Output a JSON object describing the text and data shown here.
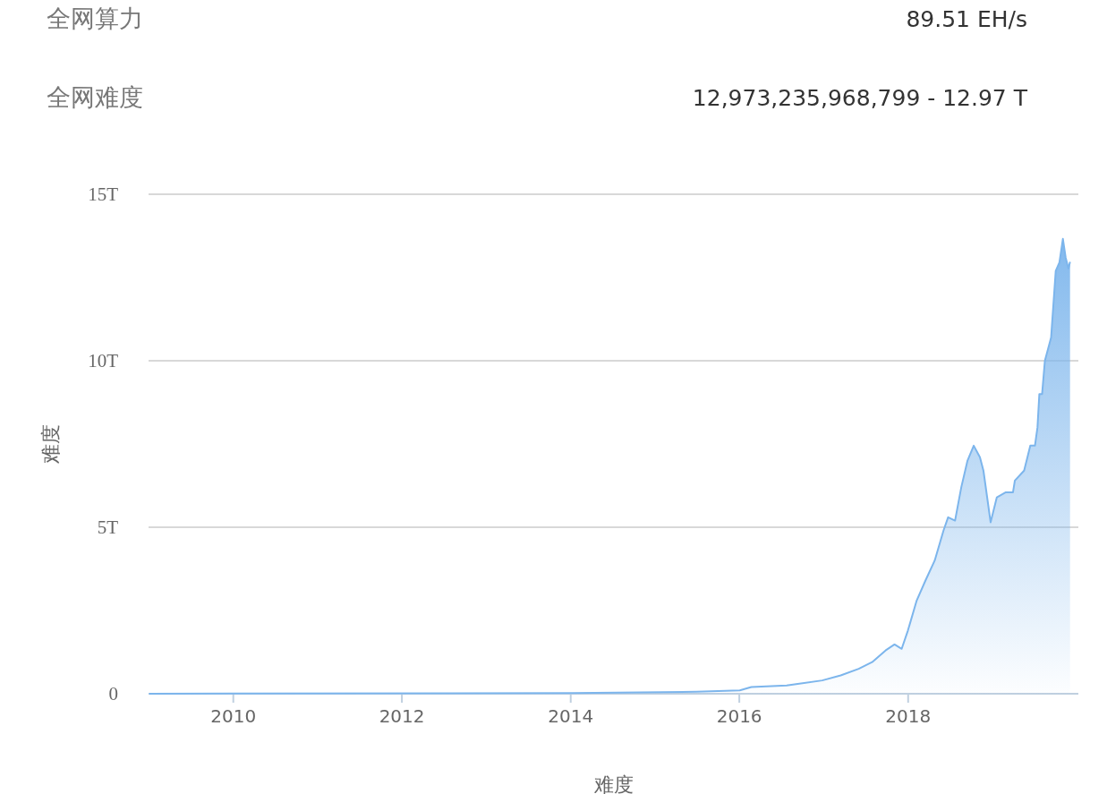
{
  "chart_data": {
    "type": "area",
    "xlabel": "难度",
    "ylabel": "难度",
    "annotations": [
      "全网算力",
      "89.51 EH/s",
      "全网难度",
      "12,973,235,968,799 - 12.97 T"
    ],
    "x": [
      "2009-01-03",
      "2014-01-10",
      "2015-07-01",
      "2016-01-05",
      "2016-02-24",
      "2016-07-26",
      "2016-12-27",
      "2017-03-17",
      "2017-06-03",
      "2017-07-31",
      "2017-09-27",
      "2017-11-05",
      "2017-12-06",
      "2018-01-02",
      "2018-02-09",
      "2018-03-19",
      "2018-04-28",
      "2018-06-05",
      "2018-06-25",
      "2018-07-25",
      "2018-08-21",
      "2018-09-17",
      "2018-10-14",
      "2018-11-10",
      "2018-11-25",
      "2018-12-26",
      "2019-01-22",
      "2019-03-02",
      "2019-04-02",
      "2019-04-10",
      "2019-05-20",
      "2019-06-16",
      "2019-07-06",
      "2019-07-17",
      "2019-07-25",
      "2019-08-06",
      "2019-08-18",
      "2019-09-14",
      "2019-10-04",
      "2019-10-20",
      "2019-11-04",
      "2019-11-16",
      "2019-11-28",
      "2019-12-05"
    ],
    "series": [
      {
        "color": "#7cb5ec",
        "values": [
          0,
          0.02,
          0.06,
          0.1,
          0.2,
          0.25,
          0.4,
          0.55,
          0.75,
          0.95,
          1.3,
          1.48,
          1.35,
          1.9,
          2.8,
          3.4,
          4.0,
          4.9,
          5.3,
          5.2,
          6.2,
          7.0,
          7.45,
          7.1,
          6.7,
          5.15,
          5.9,
          6.05,
          6.05,
          6.4,
          6.7,
          7.45,
          7.45,
          8.0,
          9.0,
          9.0,
          10.0,
          10.7,
          12.7,
          12.95,
          13.66,
          13.1,
          12.77,
          12.97
        ]
      }
    ],
    "xlim": [
      "2009-01-01",
      "2020-01-10"
    ],
    "xticks": [
      "2010",
      "2012",
      "2014",
      "2016",
      "2018"
    ],
    "ylim": [
      0,
      15
    ],
    "yticks": [
      0,
      {
        "value": 5,
        "label": "5T"
      },
      {
        "value": 10,
        "label": "10T"
      },
      {
        "value": 15,
        "label": "15T"
      }
    ],
    "grid": "y",
    "marker": "none"
  }
}
